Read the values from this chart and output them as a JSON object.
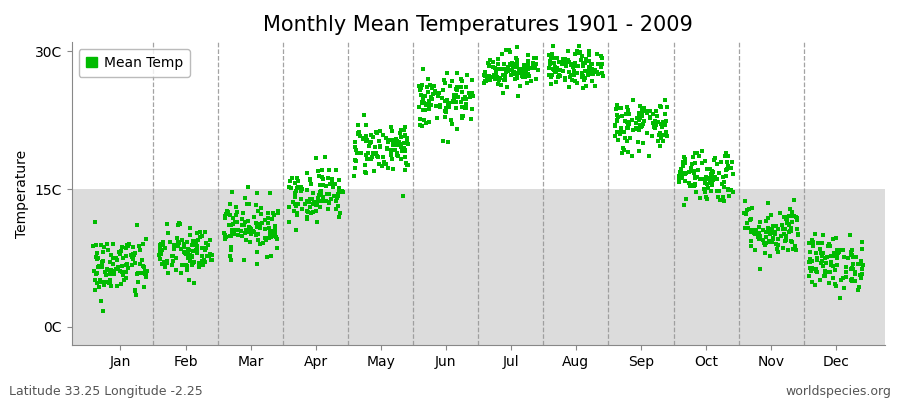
{
  "title": "Monthly Mean Temperatures 1901 - 2009",
  "ylabel": "Temperature",
  "ytick_labels": [
    "0C",
    "15C",
    "30C"
  ],
  "ytick_values": [
    0,
    15,
    30
  ],
  "ylim": [
    -2,
    31
  ],
  "month_names": [
    "Jan",
    "Feb",
    "Mar",
    "Apr",
    "May",
    "Jun",
    "Jul",
    "Aug",
    "Sep",
    "Oct",
    "Nov",
    "Dec"
  ],
  "mean_temps": [
    6.5,
    8.0,
    11.0,
    14.5,
    19.5,
    24.5,
    28.0,
    28.0,
    22.0,
    16.5,
    10.5,
    7.0
  ],
  "std_temps": [
    1.8,
    1.5,
    1.5,
    1.5,
    1.5,
    1.5,
    1.0,
    1.0,
    1.5,
    1.5,
    1.5,
    1.5
  ],
  "n_years": 109,
  "scatter_color": "#00BB00",
  "background_color_top": "#FFFFFF",
  "background_color_bottom": "#DCDCDC",
  "split_temp": 15,
  "legend_label": "Mean Temp",
  "footer_left": "Latitude 33.25 Longitude -2.25",
  "footer_right": "worldspecies.org",
  "title_fontsize": 15,
  "axis_fontsize": 10,
  "tick_fontsize": 10,
  "footer_fontsize": 9,
  "marker_size": 12,
  "scatter_x_spread": 0.42,
  "dashed_line_color": "#999999",
  "n_months": 12,
  "boundary_positions": [
    1.5,
    2.5,
    3.5,
    4.5,
    5.5,
    6.5,
    7.5,
    8.5,
    9.5,
    10.5,
    11.5
  ],
  "xlim_left": 0.25,
  "xlim_right": 12.75
}
